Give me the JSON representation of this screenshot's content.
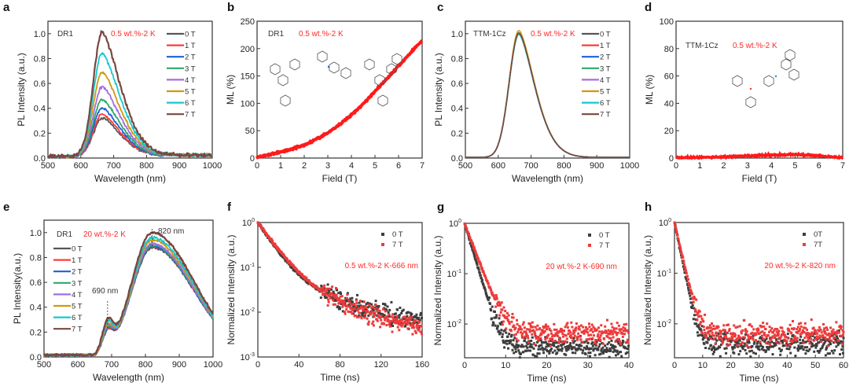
{
  "chart_data": [
    {
      "id": "a",
      "panel_label": "a",
      "type": "line",
      "xlabel": "Wavelength (nm)",
      "ylabel": "PL Intensity (a.u.)",
      "xlim": [
        500,
        1000
      ],
      "ylim": [
        0,
        1.1
      ],
      "xticks": [
        500,
        600,
        700,
        800,
        900,
        1000
      ],
      "yticks": [
        0.0,
        0.2,
        0.4,
        0.6,
        0.8,
        1.0
      ],
      "ytick_labels": [
        "0.0",
        "0.2",
        "0.4",
        "0.6",
        "0.8",
        "1.0"
      ],
      "annotations": [
        {
          "text": "DR1",
          "color": "#333333"
        },
        {
          "text": "0.5 wt.%-2 K",
          "color": "#ff2a2a"
        }
      ],
      "legend_position": "top-right",
      "peak_wavelength_nm": 665,
      "series": [
        {
          "name": "0 T",
          "color": "#555555",
          "peak": 0.31
        },
        {
          "name": "1 T",
          "color": "#ff3b3b",
          "peak": 0.34
        },
        {
          "name": "2 T",
          "color": "#1f5fd6",
          "peak": 0.39
        },
        {
          "name": "3 T",
          "color": "#2ea86a",
          "peak": 0.46
        },
        {
          "name": "4 T",
          "color": "#a56de0",
          "peak": 0.56
        },
        {
          "name": "5 T",
          "color": "#cf9a0a",
          "peak": 0.68
        },
        {
          "name": "6 T",
          "color": "#14c9d1",
          "peak": 0.83
        },
        {
          "name": "7 T",
          "color": "#7a4740",
          "peak": 1.0
        }
      ]
    },
    {
      "id": "b",
      "panel_label": "b",
      "type": "line",
      "xlabel": "Field (T)",
      "ylabel": "ML (%)",
      "xlim": [
        0,
        7
      ],
      "ylim": [
        0,
        250
      ],
      "xticks": [
        0,
        1,
        2,
        3,
        4,
        5,
        6,
        7
      ],
      "yticks": [
        0,
        50,
        100,
        150,
        200,
        250
      ],
      "annotations": [
        {
          "text": "DR1",
          "color": "#333333"
        },
        {
          "text": "0.5 wt.%-2 K",
          "color": "#ff2a2a"
        }
      ],
      "inset": "DR1 molecular structure",
      "series": [
        {
          "name": "ML",
          "color": "#ff1a1a",
          "x": [
            0,
            0.5,
            1,
            1.5,
            2,
            2.5,
            3,
            3.5,
            4,
            4.5,
            5,
            5.5,
            6,
            6.5,
            7
          ],
          "y": [
            2,
            6,
            11,
            17,
            24,
            34,
            46,
            61,
            79,
            99,
            122,
            145,
            168,
            192,
            215
          ]
        }
      ]
    },
    {
      "id": "c",
      "panel_label": "c",
      "type": "line",
      "xlabel": "Wavelength (nm)",
      "ylabel": "PL Intensity (a.u.)",
      "xlim": [
        500,
        1000
      ],
      "ylim": [
        0,
        1.1
      ],
      "xticks": [
        500,
        600,
        700,
        800,
        900,
        1000
      ],
      "yticks": [
        0.0,
        0.2,
        0.4,
        0.6,
        0.8,
        1.0
      ],
      "ytick_labels": [
        "0.0",
        "0.2",
        "0.4",
        "0.6",
        "0.8",
        "1.0"
      ],
      "annotations": [
        {
          "text": "TTM-1Cz",
          "color": "#333333"
        },
        {
          "text": "0.5 wt.%-2 K",
          "color": "#ff2a2a"
        }
      ],
      "legend_position": "top-right",
      "peak_wavelength_nm": 663,
      "series": [
        {
          "name": "0 T",
          "color": "#555555",
          "peak": 1.0
        },
        {
          "name": "1 T",
          "color": "#ff3b3b",
          "peak": 1.0
        },
        {
          "name": "2 T",
          "color": "#1f5fd6",
          "peak": 0.99
        },
        {
          "name": "3 T",
          "color": "#2ea86a",
          "peak": 1.0
        },
        {
          "name": "4 T",
          "color": "#a56de0",
          "peak": 1.0
        },
        {
          "name": "5 T",
          "color": "#cf9a0a",
          "peak": 1.02
        },
        {
          "name": "6 T",
          "color": "#14c9d1",
          "peak": 0.99
        },
        {
          "name": "7 T",
          "color": "#7a4740",
          "peak": 1.0
        }
      ]
    },
    {
      "id": "d",
      "panel_label": "d",
      "type": "line",
      "xlabel": "Field (T)",
      "ylabel": "ML (%)",
      "xlim": [
        0,
        7
      ],
      "ylim": [
        0,
        100
      ],
      "xticks": [
        0,
        1,
        2,
        3,
        4,
        5,
        6,
        7
      ],
      "yticks": [
        0,
        20,
        40,
        60,
        80,
        100
      ],
      "annotations": [
        {
          "text": "TTM-1Cz",
          "color": "#333333"
        },
        {
          "text": "0.5 wt.%-2 K",
          "color": "#ff2a2a"
        }
      ],
      "inset": "TTM-1Cz molecular structure",
      "series": [
        {
          "name": "ML",
          "color": "#ff1a1a",
          "x": [
            0,
            1,
            2,
            3,
            4,
            5,
            6,
            7
          ],
          "y": [
            0.3,
            0.4,
            0.8,
            1.5,
            2.2,
            2.6,
            1.8,
            0.2
          ]
        }
      ]
    },
    {
      "id": "e",
      "panel_label": "e",
      "type": "line",
      "xlabel": "Wavelength (nm)",
      "ylabel": "PL Intensity(a.u.)",
      "xlim": [
        500,
        1000
      ],
      "ylim": [
        0,
        1.1
      ],
      "xticks": [
        500,
        600,
        700,
        800,
        900,
        1000
      ],
      "yticks": [
        0.0,
        0.2,
        0.4,
        0.6,
        0.8,
        1.0
      ],
      "ytick_labels": [
        "0.0",
        "0.2",
        "0.4",
        "0.6",
        "0.8",
        "1.0"
      ],
      "annotations": [
        {
          "text": "DR1",
          "color": "#333333"
        },
        {
          "text": "20 wt.%-2 K",
          "color": "#ff2a2a"
        },
        {
          "text": "690 nm",
          "color": "#333333"
        },
        {
          "text": "820 nm",
          "color": "#333333"
        }
      ],
      "legend_position": "left",
      "series": [
        {
          "name": "0 T",
          "color": "#555555",
          "peak690": 0.26,
          "peak820": 0.88
        },
        {
          "name": "1 T",
          "color": "#ff3b3b",
          "peak690": 0.27,
          "peak820": 0.89
        },
        {
          "name": "2 T",
          "color": "#1f5fd6",
          "peak690": 0.28,
          "peak820": 0.89
        },
        {
          "name": "3 T",
          "color": "#2ea86a",
          "peak690": 0.29,
          "peak820": 0.9
        },
        {
          "name": "4 T",
          "color": "#a56de0",
          "peak690": 0.31,
          "peak820": 0.91
        },
        {
          "name": "5 T",
          "color": "#cf9a0a",
          "peak690": 0.33,
          "peak820": 0.94
        },
        {
          "name": "6 T",
          "color": "#14c9d1",
          "peak690": 0.36,
          "peak820": 0.96
        },
        {
          "name": "7 T",
          "color": "#7a4740",
          "peak690": 0.4,
          "peak820": 1.0
        }
      ]
    },
    {
      "id": "f",
      "panel_label": "f",
      "type": "scatter",
      "xlabel": "Time (ns)",
      "ylabel": "Normalized Intensity (a.u.)",
      "xlim": [
        0,
        160
      ],
      "ylim_log10": [
        -3,
        0
      ],
      "xticks": [
        0,
        40,
        80,
        120,
        160
      ],
      "yticks_log10": [
        -3,
        -2,
        -1,
        0
      ],
      "annotations": [
        {
          "text": "0.5 wt.%-2 K-666 nm",
          "color": "#ff2a2a"
        }
      ],
      "legend_position": "top-right",
      "series": [
        {
          "name": "0 T",
          "color": "#3d3d3d",
          "tau1_ns": 12,
          "tau2_ns": 45,
          "a2": 0.08,
          "floor": 0.004
        },
        {
          "name": "7 T",
          "color": "#ee3a3a",
          "tau1_ns": 13,
          "tau2_ns": 40,
          "a2": 0.09,
          "floor": 0.003
        }
      ]
    },
    {
      "id": "g",
      "panel_label": "g",
      "type": "scatter",
      "xlabel": "Time (ns)",
      "ylabel": "Normalized Intensity (a.u.)",
      "xlim": [
        0,
        40
      ],
      "ylim_log10": [
        -2.67,
        0
      ],
      "xticks": [
        0,
        10,
        20,
        30,
        40
      ],
      "yticks_log10": [
        -2,
        -1,
        0
      ],
      "annotations": [
        {
          "text": "20 wt.%-2 K-690 nm",
          "color": "#ff2a2a"
        }
      ],
      "legend_position": "top-right",
      "series": [
        {
          "name": "0 T",
          "color": "#3d3d3d",
          "tau1_ns": 1.6,
          "floor": 0.0035
        },
        {
          "name": "7 T",
          "color": "#ee3a3a",
          "tau1_ns": 2.0,
          "floor": 0.0065
        }
      ]
    },
    {
      "id": "h",
      "panel_label": "h",
      "type": "scatter",
      "xlabel": "Time (ns)",
      "ylabel": "Normalized Intensity (a.u.)",
      "xlim": [
        0,
        60
      ],
      "ylim_log10": [
        -2.67,
        0
      ],
      "xticks": [
        0,
        10,
        20,
        30,
        40,
        50,
        60
      ],
      "yticks_log10": [
        -2,
        -1,
        0
      ],
      "annotations": [
        {
          "text": "20 wt.%-2 K-820 nm",
          "color": "#ff2a2a"
        }
      ],
      "legend_position": "top-right",
      "series": [
        {
          "name": "0T",
          "color": "#3d3d3d",
          "tau1_ns": 1.6,
          "floor": 0.004
        },
        {
          "name": "7T",
          "color": "#ee3a3a",
          "tau1_ns": 1.8,
          "floor": 0.0065
        }
      ]
    }
  ]
}
